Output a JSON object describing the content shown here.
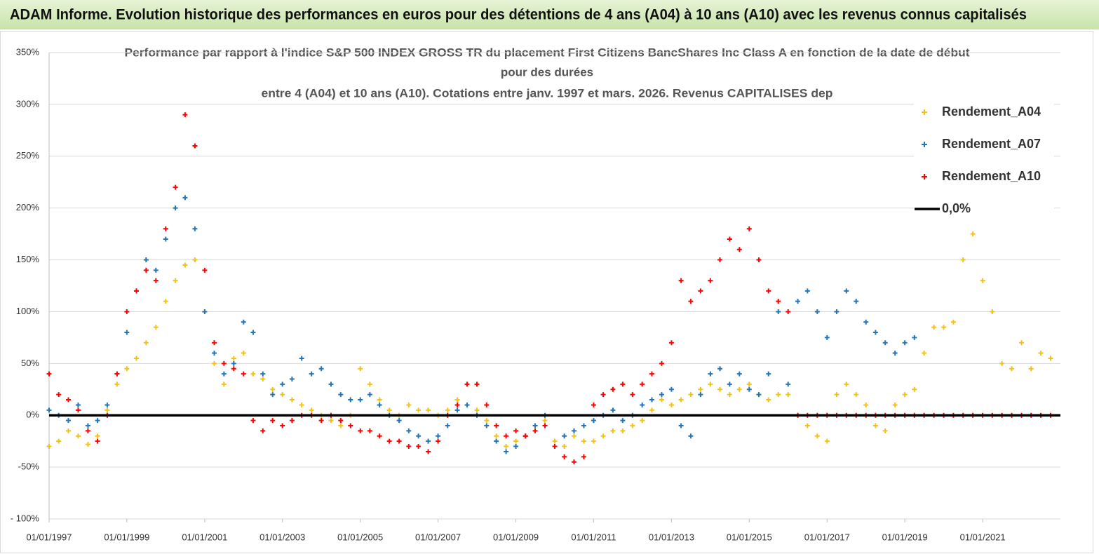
{
  "header": {
    "title": "ADAM Informe. Evolution historique des performances en euros pour des détentions de 4 ans (A04) à 10 ans (A10) avec les revenus connus capitalisés"
  },
  "chart_data": {
    "type": "scatter",
    "title": [
      "Performance par rapport à l'indice S&P 500 INDEX GROSS TR  du placement First Citizens BancShares Inc Class A en fonction de la date de début",
      "pour des durées",
      "entre 4 (A04) et 10 ans (A10). Cotations entre janv. 1997 et mars. 2026. Revenus CAPITALISES dep"
    ],
    "xlim": [
      "1997-01-01",
      "2023-01-01"
    ],
    "xticks": [
      {
        "value": "1997-01-01",
        "label": "01/01/1997"
      },
      {
        "value": "1999-01-01",
        "label": "01/01/1999"
      },
      {
        "value": "2001-01-01",
        "label": "01/01/2001"
      },
      {
        "value": "2003-01-01",
        "label": "01/01/2003"
      },
      {
        "value": "2005-01-01",
        "label": "01/01/2005"
      },
      {
        "value": "2007-01-01",
        "label": "01/01/2007"
      },
      {
        "value": "2009-01-01",
        "label": "01/01/2009"
      },
      {
        "value": "2011-01-01",
        "label": "01/01/2011"
      },
      {
        "value": "2013-01-01",
        "label": "01/01/2013"
      },
      {
        "value": "2015-01-01",
        "label": "01/01/2015"
      },
      {
        "value": "2017-01-01",
        "label": "01/01/2017"
      },
      {
        "value": "2019-01-01",
        "label": "01/01/2019"
      },
      {
        "value": "2021-01-01",
        "label": "01/01/2021"
      }
    ],
    "ylim": [
      -100,
      350
    ],
    "yticks": [
      {
        "value": -100,
        "label": "- 100%"
      },
      {
        "value": -50,
        "label": "-50%"
      },
      {
        "value": 0,
        "label": "0%"
      },
      {
        "value": 50,
        "label": "50%"
      },
      {
        "value": 100,
        "label": "100%"
      },
      {
        "value": 150,
        "label": "150%"
      },
      {
        "value": 200,
        "label": "200%"
      },
      {
        "value": 250,
        "label": "250%"
      },
      {
        "value": 300,
        "label": "300%"
      },
      {
        "value": 350,
        "label": "350%"
      }
    ],
    "grid": true,
    "legend": "right",
    "hline": {
      "name": "0,0%",
      "value": 0,
      "color": "#000000"
    },
    "series": [
      {
        "name": "Rendement_A04",
        "color": "#f2c21b",
        "x": [
          "1997-01-01",
          "1997-04-01",
          "1997-07-01",
          "1997-10-01",
          "1998-01-01",
          "1998-04-01",
          "1998-07-01",
          "1998-10-01",
          "1999-01-01",
          "1999-04-01",
          "1999-07-01",
          "1999-10-01",
          "2000-01-01",
          "2000-04-01",
          "2000-07-01",
          "2000-10-01",
          "2001-01-01",
          "2001-04-01",
          "2001-07-01",
          "2001-10-01",
          "2002-01-01",
          "2002-04-01",
          "2002-07-01",
          "2002-10-01",
          "2003-01-01",
          "2003-04-01",
          "2003-07-01",
          "2003-10-01",
          "2004-01-01",
          "2004-04-01",
          "2004-07-01",
          "2004-10-01",
          "2005-01-01",
          "2005-04-01",
          "2005-07-01",
          "2005-10-01",
          "2006-01-01",
          "2006-04-01",
          "2006-07-01",
          "2006-10-01",
          "2007-01-01",
          "2007-04-01",
          "2007-07-01",
          "2007-10-01",
          "2008-01-01",
          "2008-04-01",
          "2008-07-01",
          "2008-10-01",
          "2009-01-01",
          "2009-04-01",
          "2009-07-01",
          "2009-10-01",
          "2010-01-01",
          "2010-04-01",
          "2010-07-01",
          "2010-10-01",
          "2011-01-01",
          "2011-04-01",
          "2011-07-01",
          "2011-10-01",
          "2012-01-01",
          "2012-04-01",
          "2012-07-01",
          "2012-10-01",
          "2013-01-01",
          "2013-04-01",
          "2013-07-01",
          "2013-10-01",
          "2014-01-01",
          "2014-04-01",
          "2014-07-01",
          "2014-10-01",
          "2015-01-01",
          "2015-04-01",
          "2015-07-01",
          "2015-10-01",
          "2016-01-01",
          "2016-04-01",
          "2016-07-01",
          "2016-10-01",
          "2017-01-01",
          "2017-04-01",
          "2017-07-01",
          "2017-10-01",
          "2018-01-01",
          "2018-04-01",
          "2018-07-01",
          "2018-10-01",
          "2019-01-01",
          "2019-04-01",
          "2019-07-01",
          "2019-10-01",
          "2020-01-01",
          "2020-04-01",
          "2020-07-01",
          "2020-10-01",
          "2021-01-01",
          "2021-04-01",
          "2021-07-01",
          "2021-10-01",
          "2022-01-01",
          "2022-04-01",
          "2022-07-01",
          "2022-10-01"
        ],
        "values": [
          -30,
          -25,
          -15,
          -20,
          -28,
          -20,
          5,
          30,
          45,
          55,
          70,
          85,
          110,
          130,
          145,
          150,
          100,
          50,
          30,
          55,
          60,
          40,
          35,
          25,
          20,
          15,
          10,
          5,
          0,
          -5,
          -10,
          0,
          45,
          30,
          15,
          5,
          0,
          10,
          5,
          5,
          0,
          5,
          15,
          10,
          5,
          -5,
          -20,
          -30,
          -25,
          -20,
          -10,
          -5,
          -25,
          -30,
          -20,
          -25,
          -25,
          -20,
          -15,
          -15,
          -10,
          -5,
          5,
          15,
          10,
          15,
          20,
          25,
          30,
          25,
          20,
          25,
          30,
          20,
          15,
          20,
          20,
          0,
          -10,
          -20,
          -25,
          20,
          30,
          20,
          10,
          -10,
          -15,
          10,
          20,
          25,
          60,
          85,
          85,
          90,
          150,
          175,
          130,
          100,
          50,
          45,
          70,
          45,
          60,
          55
        ]
      },
      {
        "name": "Rendement_A07",
        "color": "#2275b8",
        "x": [
          "1997-01-01",
          "1997-04-01",
          "1997-07-01",
          "1997-10-01",
          "1998-01-01",
          "1998-04-01",
          "1998-07-01",
          "1998-10-01",
          "1999-01-01",
          "1999-04-01",
          "1999-07-01",
          "1999-10-01",
          "2000-01-01",
          "2000-04-01",
          "2000-07-01",
          "2000-10-01",
          "2001-01-01",
          "2001-04-01",
          "2001-07-01",
          "2001-10-01",
          "2002-01-01",
          "2002-04-01",
          "2002-07-01",
          "2002-10-01",
          "2003-01-01",
          "2003-04-01",
          "2003-07-01",
          "2003-10-01",
          "2004-01-01",
          "2004-04-01",
          "2004-07-01",
          "2004-10-01",
          "2005-01-01",
          "2005-04-01",
          "2005-07-01",
          "2005-10-01",
          "2006-01-01",
          "2006-04-01",
          "2006-07-01",
          "2006-10-01",
          "2007-01-01",
          "2007-04-01",
          "2007-07-01",
          "2007-10-01",
          "2008-01-01",
          "2008-04-01",
          "2008-07-01",
          "2008-10-01",
          "2009-01-01",
          "2009-04-01",
          "2009-07-01",
          "2009-10-01",
          "2010-01-01",
          "2010-04-01",
          "2010-07-01",
          "2010-10-01",
          "2011-01-01",
          "2011-04-01",
          "2011-07-01",
          "2011-10-01",
          "2012-01-01",
          "2012-04-01",
          "2012-07-01",
          "2012-10-01",
          "2013-01-01",
          "2013-04-01",
          "2013-07-01",
          "2013-10-01",
          "2014-01-01",
          "2014-04-01",
          "2014-07-01",
          "2014-10-01",
          "2015-01-01",
          "2015-04-01",
          "2015-07-01",
          "2015-10-01",
          "2016-01-01",
          "2016-04-01",
          "2016-07-01",
          "2016-10-01",
          "2017-01-01",
          "2017-04-01",
          "2017-07-01",
          "2017-10-01",
          "2018-01-01",
          "2018-04-01",
          "2018-07-01",
          "2018-10-01",
          "2019-01-01",
          "2019-04-01"
        ],
        "values": [
          5,
          0,
          -5,
          10,
          -10,
          -5,
          10,
          40,
          80,
          120,
          150,
          140,
          170,
          200,
          210,
          180,
          100,
          60,
          40,
          50,
          90,
          80,
          40,
          20,
          30,
          35,
          55,
          40,
          45,
          30,
          20,
          15,
          15,
          20,
          10,
          0,
          -5,
          -15,
          -20,
          -25,
          -20,
          -10,
          5,
          10,
          0,
          -10,
          -25,
          -35,
          -30,
          -20,
          -10,
          0,
          -30,
          -20,
          -15,
          -10,
          -5,
          0,
          5,
          -5,
          0,
          10,
          15,
          20,
          25,
          -10,
          -20,
          20,
          40,
          45,
          30,
          40,
          25,
          20,
          40,
          100,
          30,
          110,
          120,
          100,
          75,
          100,
          120,
          110,
          90,
          80,
          70,
          60,
          70,
          75
        ]
      },
      {
        "name": "Rendement_A10",
        "color": "#ff0000",
        "x": [
          "1997-01-01",
          "1997-04-01",
          "1997-07-01",
          "1997-10-01",
          "1998-01-01",
          "1998-04-01",
          "1998-07-01",
          "1998-10-01",
          "1999-01-01",
          "1999-04-01",
          "1999-07-01",
          "1999-10-01",
          "2000-01-01",
          "2000-04-01",
          "2000-07-01",
          "2000-10-01",
          "2001-01-01",
          "2001-04-01",
          "2001-07-01",
          "2001-10-01",
          "2002-01-01",
          "2002-04-01",
          "2002-07-01",
          "2002-10-01",
          "2003-01-01",
          "2003-04-01",
          "2003-07-01",
          "2003-10-01",
          "2004-01-01",
          "2004-04-01",
          "2004-07-01",
          "2004-10-01",
          "2005-01-01",
          "2005-04-01",
          "2005-07-01",
          "2005-10-01",
          "2006-01-01",
          "2006-04-01",
          "2006-07-01",
          "2006-10-01",
          "2007-01-01",
          "2007-04-01",
          "2007-07-01",
          "2007-10-01",
          "2008-01-01",
          "2008-04-01",
          "2008-07-01",
          "2008-10-01",
          "2009-01-01",
          "2009-04-01",
          "2009-07-01",
          "2009-10-01",
          "2010-01-01",
          "2010-04-01",
          "2010-07-01",
          "2010-10-01",
          "2011-01-01",
          "2011-04-01",
          "2011-07-01",
          "2011-10-01",
          "2012-01-01",
          "2012-04-01",
          "2012-07-01",
          "2012-10-01",
          "2013-01-01",
          "2013-04-01",
          "2013-07-01",
          "2013-10-01",
          "2014-01-01",
          "2014-04-01",
          "2014-07-01",
          "2014-10-01",
          "2015-01-01",
          "2015-04-01",
          "2015-07-01",
          "2015-10-01",
          "2016-01-01",
          "2016-04-01",
          "2016-07-01",
          "2016-10-01",
          "2017-01-01",
          "2017-04-01",
          "2017-07-01",
          "2017-10-01",
          "2018-01-01",
          "2018-04-01",
          "2018-07-01",
          "2018-10-01",
          "2019-01-01",
          "2019-04-01",
          "2019-07-01",
          "2019-10-01",
          "2020-01-01",
          "2020-04-01",
          "2020-07-01",
          "2020-10-01",
          "2021-01-01",
          "2021-04-01",
          "2021-07-01",
          "2021-10-01",
          "2022-01-01",
          "2022-04-01",
          "2022-07-01",
          "2022-10-01"
        ],
        "values": [
          40,
          20,
          15,
          5,
          -15,
          -25,
          0,
          40,
          100,
          120,
          140,
          130,
          180,
          220,
          290,
          260,
          140,
          70,
          50,
          45,
          40,
          -5,
          -15,
          -5,
          -10,
          -5,
          0,
          0,
          -5,
          0,
          -5,
          -10,
          -15,
          -15,
          -20,
          -25,
          -25,
          -30,
          -30,
          -35,
          -25,
          0,
          10,
          30,
          30,
          10,
          -10,
          -20,
          -15,
          -20,
          -15,
          -10,
          -30,
          -40,
          -45,
          -40,
          10,
          20,
          25,
          30,
          20,
          30,
          40,
          50,
          70,
          130,
          110,
          120,
          130,
          150,
          170,
          160,
          180,
          150,
          120,
          110,
          100,
          0,
          0,
          0,
          0,
          0,
          0,
          0,
          0,
          0,
          0,
          0,
          0,
          0,
          0,
          0,
          0,
          0,
          0,
          0,
          0,
          0,
          0,
          0,
          0,
          0,
          0,
          0
        ]
      }
    ]
  }
}
